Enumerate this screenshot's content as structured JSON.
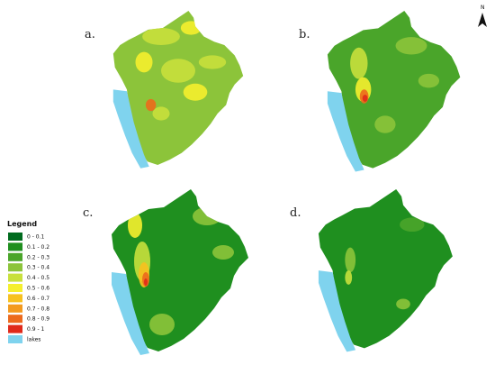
{
  "panels": [
    {
      "label": "a."
    },
    {
      "label": "b."
    },
    {
      "label": "c."
    },
    {
      "label": "d."
    }
  ],
  "legend": {
    "title": "Legend",
    "items": [
      {
        "label": "0 - 0.1",
        "color": "#006b1e"
      },
      {
        "label": "0.1 - 0.2",
        "color": "#1f8f1f"
      },
      {
        "label": "0.2 - 0.3",
        "color": "#4aa52a"
      },
      {
        "label": "0.3 - 0.4",
        "color": "#8cc43a"
      },
      {
        "label": "0.4 - 0.5",
        "color": "#c8e03c"
      },
      {
        "label": "0.5 - 0.6",
        "color": "#f5ef2d"
      },
      {
        "label": "0.6 - 0.7",
        "color": "#f7c11f"
      },
      {
        "label": "0.7 - 0.8",
        "color": "#f39a1e"
      },
      {
        "label": "0.8 - 0.9",
        "color": "#ec6a1c"
      },
      {
        "label": "0.9 - 1",
        "color": "#e02a1a"
      },
      {
        "label": "lakes",
        "color": "#7fd3ee"
      }
    ]
  },
  "north": "N"
}
